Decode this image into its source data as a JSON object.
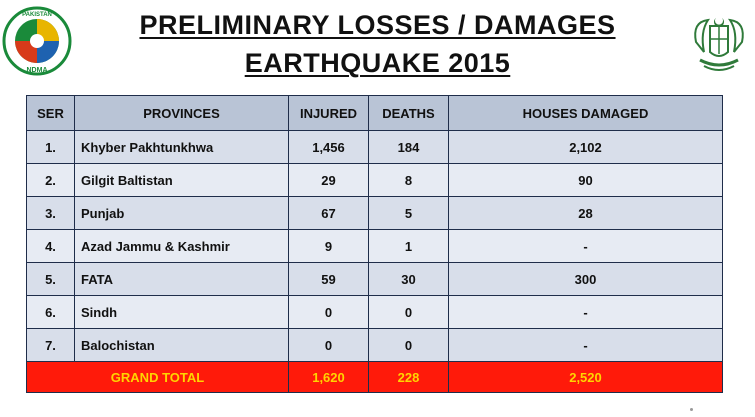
{
  "title": {
    "line1": "PRELIMINARY LOSSES / DAMAGES",
    "line2": "EARTHQUAKE 2015"
  },
  "logos": {
    "left": {
      "icon": "ndma-logo",
      "top_text": "PAKISTAN",
      "bottom_text": "NDMA",
      "colors": [
        "#1a8a3a",
        "#e8b500",
        "#1e62b0",
        "#d83a1a"
      ]
    },
    "right": {
      "icon": "state-emblem-icon"
    }
  },
  "table": {
    "headers": [
      "SER",
      "PROVINCES",
      "INJURED",
      "DEATHS",
      "HOUSES DAMAGED"
    ],
    "rows": [
      {
        "ser": "1.",
        "province": "Khyber Pakhtunkhwa",
        "injured": "1,456",
        "deaths": "184",
        "houses": "2,102"
      },
      {
        "ser": "2.",
        "province": "Gilgit Baltistan",
        "injured": "29",
        "deaths": "8",
        "houses": "90"
      },
      {
        "ser": "3.",
        "province": "Punjab",
        "injured": "67",
        "deaths": "5",
        "houses": "28"
      },
      {
        "ser": "4.",
        "province": "Azad Jammu & Kashmir",
        "injured": "9",
        "deaths": "1",
        "houses": "-"
      },
      {
        "ser": "5.",
        "province": "FATA",
        "injured": "59",
        "deaths": "30",
        "houses": "300"
      },
      {
        "ser": "6.",
        "province": "Sindh",
        "injured": "0",
        "deaths": "0",
        "houses": "-"
      },
      {
        "ser": "7.",
        "province": "Balochistan",
        "injured": "0",
        "deaths": "0",
        "houses": "-"
      }
    ],
    "total": {
      "label": "GRAND TOTAL",
      "injured": "1,620",
      "deaths": "228",
      "houses": "2,520"
    }
  },
  "colors": {
    "header_bg": "#b9c4d6",
    "row_bg": "#d8deea",
    "total_bg": "#ff1a0a",
    "total_text": "#ffd400"
  }
}
